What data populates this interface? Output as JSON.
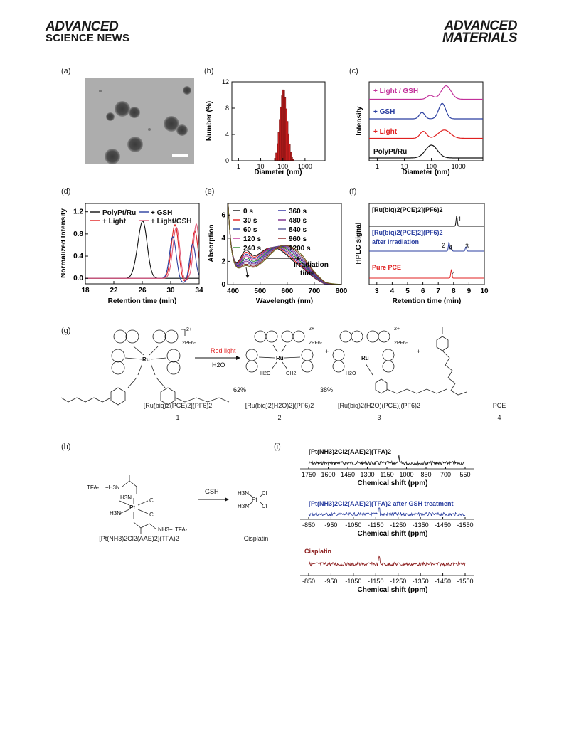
{
  "header": {
    "journal_left_line1": "ADVANCED",
    "journal_left_line2": "SCIENCE NEWS",
    "journal_right_line1": "ADVANCED",
    "journal_right_line2": "MATERIALS"
  },
  "panels": {
    "a": "(a)",
    "b": "(b)",
    "c": "(c)",
    "d": "(d)",
    "e": "(e)",
    "f": "(f)",
    "g": "(g)",
    "h": "(h)",
    "i": "(i)"
  },
  "chart_data": [
    {
      "panel": "b",
      "type": "bar",
      "xlabel": "Diameter (nm)",
      "ylabel": "Number (%)",
      "xscale": "log",
      "xlim": [
        0.5,
        8000
      ],
      "ylim": [
        0,
        12
      ],
      "xticks": [
        "1",
        "10",
        "100",
        "1000"
      ],
      "yticks": [
        "0",
        "4",
        "8",
        "12"
      ],
      "x": [
        44,
        50,
        57,
        64,
        72,
        81,
        91,
        102,
        115,
        129,
        145,
        163,
        183,
        206,
        232,
        261,
        293
      ],
      "values": [
        0.4,
        1.2,
        2.6,
        4.3,
        6.3,
        8.2,
        9.9,
        10.8,
        10.7,
        9.6,
        7.9,
        6.0,
        4.1,
        2.5,
        1.3,
        0.6,
        0.2
      ],
      "color": "#cc1f1f"
    },
    {
      "panel": "c",
      "type": "line",
      "xlabel": "Diameter (nm)",
      "ylabel": "Intensity",
      "xscale": "log",
      "xticks": [
        "1",
        "10",
        "100",
        "1000"
      ],
      "series": [
        {
          "name": "PolyPt/Ru",
          "color": "#111111",
          "offset": 0,
          "peaks": [
            [
              100,
              1.0,
              0.22
            ]
          ]
        },
        {
          "name": "+ Light",
          "color": "#e02020",
          "offset": 1,
          "peaks": [
            [
              50,
              0.55,
              0.12
            ],
            [
              300,
              0.65,
              0.22
            ]
          ]
        },
        {
          "name": "+ GSH",
          "color": "#2b3fa0",
          "offset": 2,
          "peaks": [
            [
              45,
              0.5,
              0.1
            ],
            [
              250,
              1.2,
              0.13
            ]
          ]
        },
        {
          "name": "+ Light / GSH",
          "color": "#c2309a",
          "offset": 3,
          "peaks": [
            [
              90,
              0.3,
              0.12
            ],
            [
              350,
              1.05,
              0.18
            ]
          ]
        }
      ]
    },
    {
      "panel": "d",
      "type": "line",
      "xlabel": "Retention time (min)",
      "ylabel": "Normalized Intensity",
      "xlim": [
        18,
        34
      ],
      "ylim": [
        -0.1,
        1.35
      ],
      "xticks": [
        "18",
        "22",
        "26",
        "30",
        "34"
      ],
      "yticks": [
        "0.0",
        "0.4",
        "0.8",
        "1.2"
      ],
      "series": [
        {
          "name": "PolyPt/Ru",
          "color": "#111111",
          "peaks": [
            [
              26.1,
              1.0,
              0.6
            ],
            [
              25.2,
              0.15,
              0.5
            ]
          ]
        },
        {
          "name": "+ Light",
          "color": "#e02020",
          "peaks": [
            [
              30.6,
              0.97,
              0.5
            ],
            [
              33.4,
              0.85,
              0.45
            ]
          ]
        },
        {
          "name": "+ GSH",
          "color": "#2b3fa0",
          "peaks": [
            [
              30.3,
              0.75,
              0.45
            ],
            [
              33.1,
              0.62,
              0.4
            ]
          ]
        },
        {
          "name": "+ Light/GSH",
          "color": "#e05a7a",
          "peaks": [
            [
              30.8,
              0.92,
              0.5
            ],
            [
              33.6,
              0.98,
              0.4
            ]
          ]
        }
      ]
    },
    {
      "panel": "e",
      "type": "line",
      "xlabel": "Wavelength (nm)",
      "ylabel": "Absorption",
      "xlim": [
        380,
        800
      ],
      "ylim": [
        0,
        7
      ],
      "xticks": [
        "400",
        "500",
        "600",
        "700",
        "800"
      ],
      "yticks": [
        "0",
        "2",
        "4",
        "6"
      ],
      "annotation": "Irradiation\ntime",
      "series": [
        {
          "name": "0 s",
          "color": "#111111"
        },
        {
          "name": "30 s",
          "color": "#e02020"
        },
        {
          "name": "60 s",
          "color": "#2b3fa0"
        },
        {
          "name": "120 s",
          "color": "#c2309a"
        },
        {
          "name": "240 s",
          "color": "#2a8a2a"
        },
        {
          "name": "360 s",
          "color": "#2a2aa0"
        },
        {
          "name": "480 s",
          "color": "#7a2a8a"
        },
        {
          "name": "840 s",
          "color": "#5a5a9a"
        },
        {
          "name": "960 s",
          "color": "#8a2020"
        },
        {
          "name": "1200 s",
          "color": "#6a6a20"
        }
      ]
    },
    {
      "panel": "f",
      "type": "line",
      "xlabel": "Retention time (min)",
      "ylabel": "HPLC signal",
      "xlim": [
        2.5,
        10
      ],
      "xticks": [
        "3",
        "4",
        "5",
        "6",
        "7",
        "8",
        "9",
        "10"
      ],
      "series": [
        {
          "name": "[Ru(biq)2(PCE)2](PF6)2",
          "color": "#111111",
          "peaks": [
            [
              8.2,
              1.0
            ]
          ],
          "labels": [
            "1"
          ]
        },
        {
          "name": "[Ru(biq)2(PCE)2](PF6)2 after irradiation",
          "color": "#2b3fa0",
          "peaks": [
            [
              7.7,
              0.9
            ],
            [
              7.85,
              0.4
            ],
            [
              8.8,
              0.45
            ]
          ],
          "labels": [
            "2",
            "4",
            "3"
          ]
        },
        {
          "name": "Pure PCE",
          "color": "#e02020",
          "peaks": [
            [
              7.85,
              0.8
            ]
          ],
          "labels": [
            "4"
          ]
        }
      ]
    },
    {
      "panel": "i",
      "type": "line",
      "xlabel": "Chemical shift (ppm)",
      "series": [
        {
          "name": "[Pt(NH3)2Cl2(AAE)2](TFA)2",
          "color": "#111111",
          "xticks": [
            "1750",
            "1600",
            "1450",
            "1300",
            "1150",
            "1000",
            "850",
            "700",
            "550"
          ],
          "peak_ppm": 1060
        },
        {
          "name": "[Pt(NH3)2Cl2(AAE)2](TFA)2 after GSH treatment",
          "color": "#2b3fa0",
          "xticks": [
            "-850",
            "-950",
            "-1050",
            "-1150",
            "-1250",
            "-1350",
            "-1450",
            "-1550"
          ],
          "peak_ppm": -1165
        },
        {
          "name": "Cisplatin",
          "color": "#8a1a1a",
          "xticks": [
            "-850",
            "-950",
            "-1050",
            "-1150",
            "-1250",
            "-1350",
            "-1450",
            "-1550"
          ],
          "peak_ppm": -1165
        }
      ]
    }
  ],
  "labels": {
    "b_ylabel": "Number (%)",
    "b_xlabel": "Diameter (nm)",
    "c_ylabel": "Intensity",
    "c_xlabel": "Diameter (nm)",
    "c_leg": [
      "+ Light / GSH",
      "+ GSH",
      "+ Light",
      "PolyPt/Ru"
    ],
    "d_ylabel": "Normalized Intensity",
    "d_xlabel": "Retention time (min)",
    "d_leg": [
      "PolyPt/Ru",
      "+ GSH",
      "+ Light",
      "+ Light/GSH"
    ],
    "e_ylabel": "Absorption",
    "e_xlabel": "Wavelength (nm)",
    "e_leg": [
      "0 s",
      "360 s",
      "30 s",
      "480 s",
      "60 s",
      "840 s",
      "120 s",
      "960 s",
      "240 s",
      "1200 s"
    ],
    "e_annot1": "Irradiation",
    "e_annot2": "time",
    "f_ylabel": "HPLC signal",
    "f_xlabel": "Retention time (min)",
    "f_t1": "[Ru(biq)2(PCE)2](PF6)2",
    "f_t2a": "[Ru(biq)2(PCE)2](PF6)2",
    "f_t2b": "after irradiation",
    "f_t3": "Pure PCE",
    "f_n1": "1",
    "f_n2": "2",
    "f_n4a": "4",
    "f_n3": "3",
    "f_n4b": "4",
    "i_xlabel": "Chemical shift (ppm)",
    "i_t1": "[Pt(NH3)2Cl2(AAE)2](TFA)2",
    "i_t2": "[Pt(NH3)2Cl2(AAE)2](TFA)2 after GSH treatment",
    "i_t3": "Cisplatin"
  },
  "scheme_g": {
    "reagent_top": "Red light",
    "reagent_bottom": "H2O",
    "charge": "2+",
    "counterion": "2PF6-",
    "plus": "+",
    "yield_2": "62%",
    "yield_3": "38%",
    "name_1": "[Ru(biq)2(PCE)2](PF6)2",
    "name_2": "[Ru(biq)2(H2O)2](PF6)2",
    "name_3": "[Ru(biq)2(H2O)(PCE)](PF6)2",
    "name_4": "PCE",
    "num_1": "1",
    "num_2": "2",
    "num_3": "3",
    "num_4": "4",
    "ru": "Ru",
    "n": "N",
    "h2o": "H2O",
    "oh2": "OH2",
    "o": "O"
  },
  "scheme_h": {
    "reagent": "GSH",
    "tfa1": "TFA-",
    "tfa2": "TFA-",
    "nh3plus_top": "+H3N",
    "nh3plus_bot": "NH3+",
    "h3n1": "H3N",
    "h3n2": "H3N",
    "pt": "Pt",
    "cl": "Cl",
    "name_left": "[Pt(NH3)2Cl2(AAE)2](TFA)2",
    "name_right": "Cisplatin"
  }
}
